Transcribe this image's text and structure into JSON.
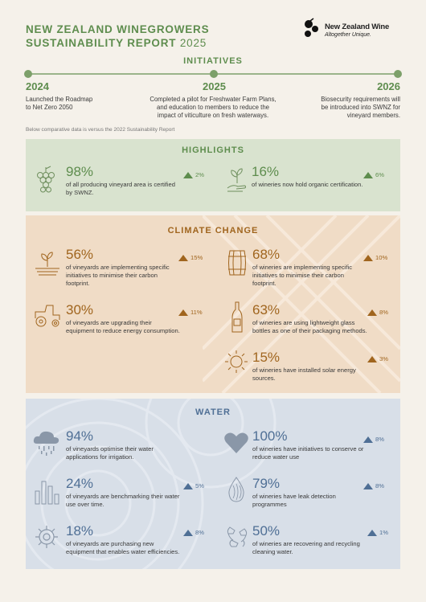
{
  "header": {
    "title_line1": "NEW ZEALAND WINEGROWERS",
    "title_line2": "SUSTAINABILITY REPORT",
    "title_year": "2025",
    "logo_name": "New Zealand Wine",
    "logo_tagline": "Altogether Unique."
  },
  "initiatives": {
    "title": "INITIATIVES",
    "items": [
      {
        "year": "2024",
        "text_l1": "Launched the Roadmap",
        "text_l2": "to Net Zero 2050",
        "text_l3": ""
      },
      {
        "year": "2025",
        "text_l1": "Completed a pilot for Freshwater Farm Plans,",
        "text_l2": "and education to members to reduce the",
        "text_l3": "impact of viticulture on fresh waterways."
      },
      {
        "year": "2026",
        "text_l1": "Biosecurity requirements will",
        "text_l2": "be introduced into SWNZ for",
        "text_l3": "vineyard members."
      }
    ]
  },
  "note": "Below comparative data is versus the 2022 Sustainability Report",
  "highlights": {
    "title": "HIGHLIGHTS",
    "color": "#5e8d4e",
    "stats": [
      {
        "pct": "98%",
        "delta": "2%",
        "d1": "of all producing vineyard area is certified",
        "d2": "by SWNZ.",
        "icon": "grapes-icon"
      },
      {
        "pct": "16%",
        "delta": "6%",
        "d1": "of wineries now hold organic certification.",
        "d2": "",
        "icon": "seedling-hand-icon"
      }
    ]
  },
  "climate": {
    "title": "CLIMATE CHANGE",
    "color": "#a0651e",
    "stats": [
      {
        "pct": "56%",
        "delta": "15%",
        "d1": "of vineyards are implementing specific",
        "d2": "initiatives to minimise their carbon",
        "d3": "footprint.",
        "icon": "sprout-field-icon"
      },
      {
        "pct": "68%",
        "delta": "10%",
        "d1": "of wineries are implementing specific",
        "d2": "initiatives to minimise their carbon",
        "d3": "footprint.",
        "icon": "barrel-icon"
      },
      {
        "pct": "30%",
        "delta": "11%",
        "d1": "of vineyards are upgrading their",
        "d2": "equipment to reduce energy consumption.",
        "d3": "",
        "icon": "tractor-icon"
      },
      {
        "pct": "63%",
        "delta": "8%",
        "d1": "of wineries are using lightweight glass",
        "d2": "bottles as one of their packaging methods.",
        "d3": "",
        "icon": "bottle-icon"
      },
      {
        "pct": "15%",
        "delta": "3%",
        "d1": "of wineries have installed solar energy",
        "d2": "sources.",
        "d3": "",
        "icon": "sun-icon"
      }
    ]
  },
  "water": {
    "title": "WATER",
    "color": "#4f6f95",
    "stats": [
      {
        "pct": "94%",
        "delta": "",
        "d1": "of vineyards optimise their water",
        "d2": "applications for irrigation.",
        "icon": "rain-cloud-icon"
      },
      {
        "pct": "100%",
        "delta": "8%",
        "d1": "of wineries have initiatives to conserve or",
        "d2": "reduce water use",
        "icon": "heart-icon"
      },
      {
        "pct": "24%",
        "delta": "5%",
        "d1": "of vineyards are benchmarking their water",
        "d2": "use over time.",
        "icon": "bar-chart-icon"
      },
      {
        "pct": "79%",
        "delta": "8%",
        "d1": "of wineries have leak detection",
        "d2": "programmes",
        "icon": "water-drop-icon"
      },
      {
        "pct": "18%",
        "delta": "8%",
        "d1": "of vineyards are purchasing new",
        "d2": "equipment that enables water efficiencies.",
        "icon": "gear-icon"
      },
      {
        "pct": "50%",
        "delta": "1%",
        "d1": "of wineries are recovering and recycling",
        "d2": "cleaning water.",
        "icon": "recycle-hands-icon"
      }
    ]
  }
}
